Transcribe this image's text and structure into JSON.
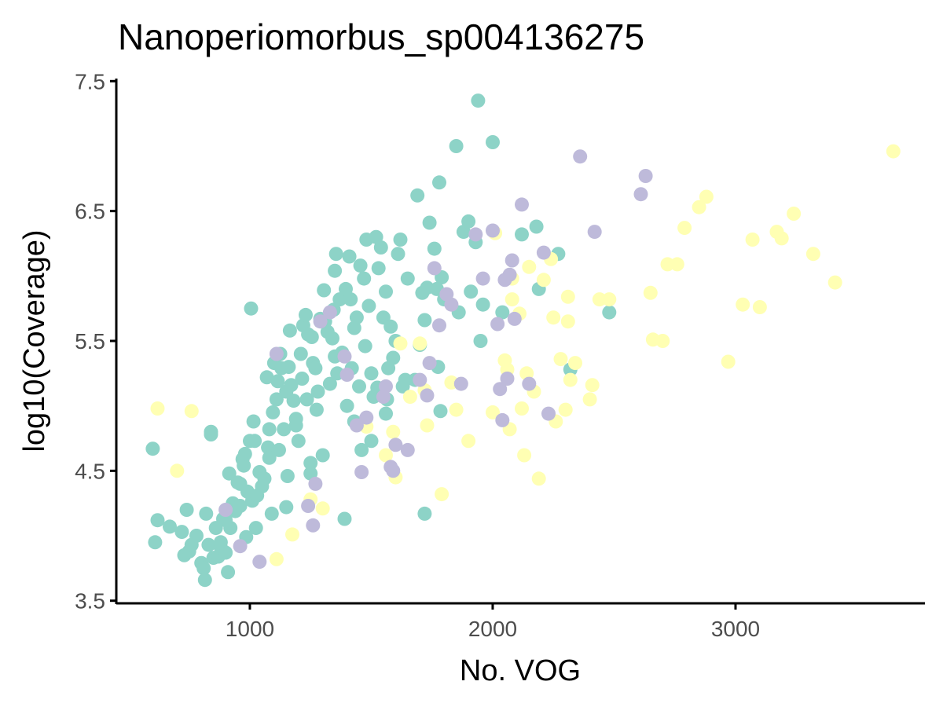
{
  "chart_data": {
    "type": "scatter",
    "title": "Nanoperiomorbus_sp004136275",
    "xlabel": "No. VOG",
    "ylabel": "log10(Coverage)",
    "xlim": [
      450,
      3780
    ],
    "ylim": [
      3.48,
      7.52
    ],
    "xticks": [
      1000,
      2000,
      3000
    ],
    "yticks": [
      3.5,
      4.5,
      5.5,
      6.5,
      7.5
    ],
    "xtick_labels": [
      "1000",
      "2000",
      "3000"
    ],
    "ytick_labels": [
      "3.5",
      "4.5",
      "5.5",
      "6.5",
      "7.5"
    ],
    "grid": false,
    "legend": "none",
    "series": [
      {
        "color": "#8dd3c7",
        "points": [
          [
            600,
            4.67
          ],
          [
            610,
            3.95
          ],
          [
            620,
            4.12
          ],
          [
            670,
            4.07
          ],
          [
            720,
            4.03
          ],
          [
            730,
            3.85
          ],
          [
            740,
            4.2
          ],
          [
            750,
            3.88
          ],
          [
            760,
            3.93
          ],
          [
            780,
            4.0
          ],
          [
            800,
            3.79
          ],
          [
            810,
            3.75
          ],
          [
            815,
            3.66
          ],
          [
            820,
            4.17
          ],
          [
            830,
            3.93
          ],
          [
            840,
            4.8
          ],
          [
            840,
            4.78
          ],
          [
            850,
            3.83
          ],
          [
            860,
            4.06
          ],
          [
            870,
            3.84
          ],
          [
            880,
            3.91
          ],
          [
            890,
            4.13
          ],
          [
            900,
            4.12
          ],
          [
            910,
            3.72
          ],
          [
            915,
            4.48
          ],
          [
            920,
            4.06
          ],
          [
            930,
            4.25
          ],
          [
            940,
            4.19
          ],
          [
            950,
            4.41
          ],
          [
            960,
            4.23
          ],
          [
            970,
            4.59
          ],
          [
            975,
            4.54
          ],
          [
            980,
            4.63
          ],
          [
            985,
            3.99
          ],
          [
            990,
            4.34
          ],
          [
            1000,
            4.73
          ],
          [
            1005,
            5.75
          ],
          [
            1010,
            4.27
          ],
          [
            1015,
            4.88
          ],
          [
            1020,
            4.73
          ],
          [
            1025,
            4.06
          ],
          [
            1030,
            4.31
          ],
          [
            1040,
            4.49
          ],
          [
            1050,
            4.38
          ],
          [
            1060,
            4.44
          ],
          [
            1070,
            5.22
          ],
          [
            1075,
            4.68
          ],
          [
            1080,
            4.6
          ],
          [
            1090,
            4.17
          ],
          [
            1095,
            4.95
          ],
          [
            1100,
            5.33
          ],
          [
            1110,
            5.05
          ],
          [
            1115,
            5.19
          ],
          [
            1120,
            4.66
          ],
          [
            1125,
            5.4
          ],
          [
            1130,
            5.29
          ],
          [
            1140,
            4.82
          ],
          [
            1150,
            5.11
          ],
          [
            1155,
            4.46
          ],
          [
            1160,
            5.3
          ],
          [
            1165,
            5.58
          ],
          [
            1170,
            5.16
          ],
          [
            1180,
            5.04
          ],
          [
            1190,
            4.9
          ],
          [
            1200,
            4.73
          ],
          [
            1210,
            5.4
          ],
          [
            1215,
            5.21
          ],
          [
            1220,
            5.62
          ],
          [
            1230,
            5.7
          ],
          [
            1235,
            5.05
          ],
          [
            1240,
            5.55
          ],
          [
            1250,
            4.48
          ],
          [
            1255,
            5.53
          ],
          [
            1260,
            5.33
          ],
          [
            1270,
            5.29
          ],
          [
            1275,
            4.97
          ],
          [
            1280,
            5.11
          ],
          [
            1290,
            5.67
          ],
          [
            1300,
            4.62
          ],
          [
            1305,
            5.89
          ],
          [
            1310,
            5.65
          ],
          [
            1320,
            5.57
          ],
          [
            1330,
            5.17
          ],
          [
            1340,
            5.52
          ],
          [
            1345,
            5.74
          ],
          [
            1350,
            6.04
          ],
          [
            1355,
            6.17
          ],
          [
            1360,
            5.25
          ],
          [
            1370,
            5.82
          ],
          [
            1380,
            5.41
          ],
          [
            1390,
            4.13
          ],
          [
            1395,
            5.9
          ],
          [
            1400,
            5.0
          ],
          [
            1410,
            6.15
          ],
          [
            1415,
            5.82
          ],
          [
            1420,
            5.29
          ],
          [
            1430,
            5.6
          ],
          [
            1440,
            5.68
          ],
          [
            1450,
            5.15
          ],
          [
            1455,
            6.08
          ],
          [
            1460,
            4.66
          ],
          [
            1470,
            5.98
          ],
          [
            1475,
            5.46
          ],
          [
            1480,
            6.28
          ],
          [
            1490,
            5.77
          ],
          [
            1500,
            5.25
          ],
          [
            1510,
            5.07
          ],
          [
            1520,
            6.3
          ],
          [
            1525,
            5.14
          ],
          [
            1530,
            6.06
          ],
          [
            1540,
            6.22
          ],
          [
            1550,
            5.68
          ],
          [
            1560,
            5.88
          ],
          [
            1565,
            5.05
          ],
          [
            1570,
            5.29
          ],
          [
            1580,
            5.61
          ],
          [
            1590,
            5.37
          ],
          [
            1600,
            5.5
          ],
          [
            1610,
            6.17
          ],
          [
            1620,
            6.28
          ],
          [
            1630,
            5.15
          ],
          [
            1650,
            5.98
          ],
          [
            1680,
            5.2
          ],
          [
            1690,
            6.62
          ],
          [
            1700,
            5.47
          ],
          [
            1710,
            5.87
          ],
          [
            1720,
            5.66
          ],
          [
            1730,
            5.91
          ],
          [
            1740,
            6.41
          ],
          [
            1760,
            6.21
          ],
          [
            1770,
            5.9
          ],
          [
            1775,
            5.3
          ],
          [
            1780,
            6.72
          ],
          [
            1790,
            5.99
          ],
          [
            1800,
            5.82
          ],
          [
            1850,
            7.0
          ],
          [
            1860,
            5.72
          ],
          [
            1880,
            6.34
          ],
          [
            1900,
            6.42
          ],
          [
            1910,
            5.88
          ],
          [
            1930,
            6.26
          ],
          [
            1940,
            7.35
          ],
          [
            1950,
            5.5
          ],
          [
            1960,
            5.78
          ],
          [
            2000,
            7.03
          ],
          [
            2040,
            5.72
          ],
          [
            2120,
            6.32
          ],
          [
            2180,
            6.38
          ],
          [
            2190,
            5.9
          ],
          [
            2270,
            6.17
          ],
          [
            2320,
            5.28
          ],
          [
            2480,
            5.72
          ],
          [
            1720,
            4.17
          ],
          [
            1785,
            4.96
          ],
          [
            1640,
            5.2
          ],
          [
            1560,
            4.94
          ],
          [
            1430,
            4.88
          ],
          [
            1500,
            4.73
          ],
          [
            1350,
            5.38
          ],
          [
            1250,
            4.56
          ],
          [
            1190,
            4.85
          ],
          [
            1080,
            4.82
          ],
          [
            960,
            4.4
          ],
          [
            900,
            3.87
          ],
          [
            880,
            3.95
          ],
          [
            1150,
            4.22
          ]
        ]
      },
      {
        "color": "#ffffb3",
        "points": [
          [
            620,
            4.98
          ],
          [
            700,
            4.5
          ],
          [
            760,
            4.96
          ],
          [
            1110,
            3.82
          ],
          [
            1175,
            4.01
          ],
          [
            1250,
            4.28
          ],
          [
            1300,
            4.21
          ],
          [
            1480,
            4.84
          ],
          [
            1560,
            4.62
          ],
          [
            1590,
            4.8
          ],
          [
            1600,
            4.45
          ],
          [
            1620,
            5.48
          ],
          [
            1660,
            5.07
          ],
          [
            1700,
            5.48
          ],
          [
            1720,
            5.12
          ],
          [
            1730,
            4.85
          ],
          [
            1790,
            4.32
          ],
          [
            1830,
            5.18
          ],
          [
            1850,
            4.97
          ],
          [
            1900,
            4.73
          ],
          [
            2000,
            4.95
          ],
          [
            2010,
            6.33
          ],
          [
            2050,
            5.35
          ],
          [
            2060,
            5.28
          ],
          [
            2070,
            4.82
          ],
          [
            2080,
            5.82
          ],
          [
            2110,
            5.71
          ],
          [
            2120,
            4.98
          ],
          [
            2130,
            4.62
          ],
          [
            2140,
            5.25
          ],
          [
            2150,
            6.07
          ],
          [
            2170,
            5.11
          ],
          [
            2190,
            4.44
          ],
          [
            2210,
            5.97
          ],
          [
            2240,
            6.13
          ],
          [
            2250,
            5.68
          ],
          [
            2260,
            4.88
          ],
          [
            2280,
            5.36
          ],
          [
            2300,
            4.97
          ],
          [
            2310,
            5.65
          ],
          [
            2310,
            5.84
          ],
          [
            2320,
            5.2
          ],
          [
            2400,
            5.05
          ],
          [
            2410,
            5.16
          ],
          [
            2440,
            5.82
          ],
          [
            2480,
            5.82
          ],
          [
            2650,
            5.87
          ],
          [
            2660,
            5.51
          ],
          [
            2700,
            5.5
          ],
          [
            2720,
            6.09
          ],
          [
            2760,
            6.09
          ],
          [
            2790,
            6.37
          ],
          [
            2850,
            6.53
          ],
          [
            2880,
            6.61
          ],
          [
            2970,
            5.34
          ],
          [
            3030,
            5.78
          ],
          [
            3070,
            6.28
          ],
          [
            3100,
            5.76
          ],
          [
            3170,
            6.34
          ],
          [
            3190,
            6.29
          ],
          [
            3240,
            6.48
          ],
          [
            3320,
            6.17
          ],
          [
            3410,
            5.95
          ],
          [
            3650,
            6.96
          ],
          [
            2080,
            5.98
          ],
          [
            2340,
            5.33
          ]
        ]
      },
      {
        "color": "#bebada",
        "points": [
          [
            900,
            4.2
          ],
          [
            960,
            3.92
          ],
          [
            1040,
            3.8
          ],
          [
            1110,
            5.4
          ],
          [
            1240,
            4.23
          ],
          [
            1260,
            4.08
          ],
          [
            1270,
            4.4
          ],
          [
            1290,
            5.65
          ],
          [
            1330,
            5.72
          ],
          [
            1390,
            5.38
          ],
          [
            1400,
            5.24
          ],
          [
            1440,
            4.85
          ],
          [
            1460,
            4.49
          ],
          [
            1480,
            4.91
          ],
          [
            1550,
            5.07
          ],
          [
            1580,
            4.53
          ],
          [
            1590,
            4.5
          ],
          [
            1600,
            4.7
          ],
          [
            1650,
            4.66
          ],
          [
            1700,
            5.2
          ],
          [
            1740,
            5.33
          ],
          [
            1780,
            5.62
          ],
          [
            1810,
            5.86
          ],
          [
            1830,
            5.78
          ],
          [
            1870,
            5.17
          ],
          [
            1930,
            6.32
          ],
          [
            1960,
            5.98
          ],
          [
            2000,
            6.35
          ],
          [
            2020,
            5.63
          ],
          [
            2040,
            4.89
          ],
          [
            2050,
            5.97
          ],
          [
            2070,
            6.01
          ],
          [
            2080,
            6.12
          ],
          [
            2090,
            5.67
          ],
          [
            2120,
            6.55
          ],
          [
            2150,
            5.17
          ],
          [
            2210,
            6.18
          ],
          [
            2230,
            4.94
          ],
          [
            2360,
            6.92
          ],
          [
            2420,
            6.34
          ],
          [
            2610,
            6.63
          ],
          [
            2630,
            6.77
          ],
          [
            1730,
            5.08
          ],
          [
            1560,
            5.15
          ],
          [
            2030,
            5.13
          ],
          [
            2060,
            5.21
          ],
          [
            1760,
            6.06
          ]
        ]
      }
    ]
  }
}
